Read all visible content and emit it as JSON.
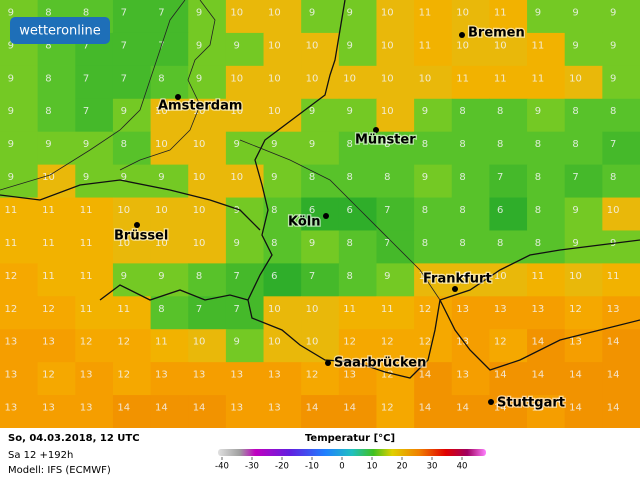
{
  "logo": "wetteronline",
  "cities": [
    "Bremen",
    "Amsterdam",
    "Münster",
    "Köln",
    "Brüssel",
    "Frankfurt",
    "Saarbrücken",
    "Stuttgart"
  ],
  "grid": [
    [
      9,
      8,
      8,
      7,
      7,
      9,
      10,
      10,
      9,
      9,
      10,
      11,
      10,
      11,
      9,
      9,
      9
    ],
    [
      9,
      8,
      7,
      7,
      7,
      9,
      9,
      10,
      10,
      9,
      10,
      11,
      10,
      10,
      11,
      9,
      9
    ],
    [
      9,
      8,
      7,
      7,
      8,
      9,
      10,
      10,
      10,
      10,
      10,
      10,
      11,
      11,
      11,
      10,
      9
    ],
    [
      9,
      8,
      7,
      9,
      10,
      10,
      10,
      10,
      9,
      9,
      10,
      9,
      8,
      8,
      9,
      8,
      8
    ],
    [
      9,
      9,
      9,
      8,
      10,
      10,
      9,
      9,
      9,
      8,
      8,
      8,
      8,
      8,
      8,
      8,
      7
    ],
    [
      9,
      10,
      9,
      9,
      9,
      10,
      10,
      9,
      8,
      8,
      8,
      9,
      8,
      7,
      8,
      7,
      8
    ],
    [
      11,
      11,
      11,
      10,
      10,
      10,
      9,
      8,
      6,
      6,
      7,
      8,
      8,
      6,
      8,
      9,
      10
    ],
    [
      11,
      11,
      11,
      10,
      10,
      10,
      9,
      8,
      9,
      8,
      7,
      8,
      8,
      8,
      8,
      9,
      9
    ],
    [
      12,
      11,
      11,
      9,
      9,
      8,
      7,
      6,
      7,
      8,
      9,
      10,
      10,
      10,
      11,
      10,
      11
    ],
    [
      12,
      12,
      11,
      11,
      8,
      7,
      7,
      10,
      10,
      11,
      11,
      12,
      13,
      13,
      13,
      12,
      13
    ],
    [
      13,
      13,
      12,
      12,
      11,
      10,
      9,
      10,
      10,
      12,
      12,
      12,
      13,
      12,
      14,
      13,
      14
    ],
    [
      13,
      12,
      13,
      12,
      13,
      13,
      13,
      13,
      12,
      13,
      12,
      14,
      13,
      14,
      14,
      14,
      14
    ],
    [
      13,
      13,
      13,
      14,
      14,
      14,
      13,
      13,
      14,
      14,
      12,
      14,
      14,
      14,
      13,
      14,
      14
    ]
  ],
  "footer": {
    "date": "So, 04.03.2018, 12 UTC",
    "run": "Sa 12 +192h",
    "model": "Modell: IFS (ECMWF)"
  },
  "legend": {
    "title": "Temperatur [°C]",
    "ticks": [
      -40,
      -30,
      -20,
      -10,
      0,
      10,
      20,
      30,
      40
    ]
  }
}
